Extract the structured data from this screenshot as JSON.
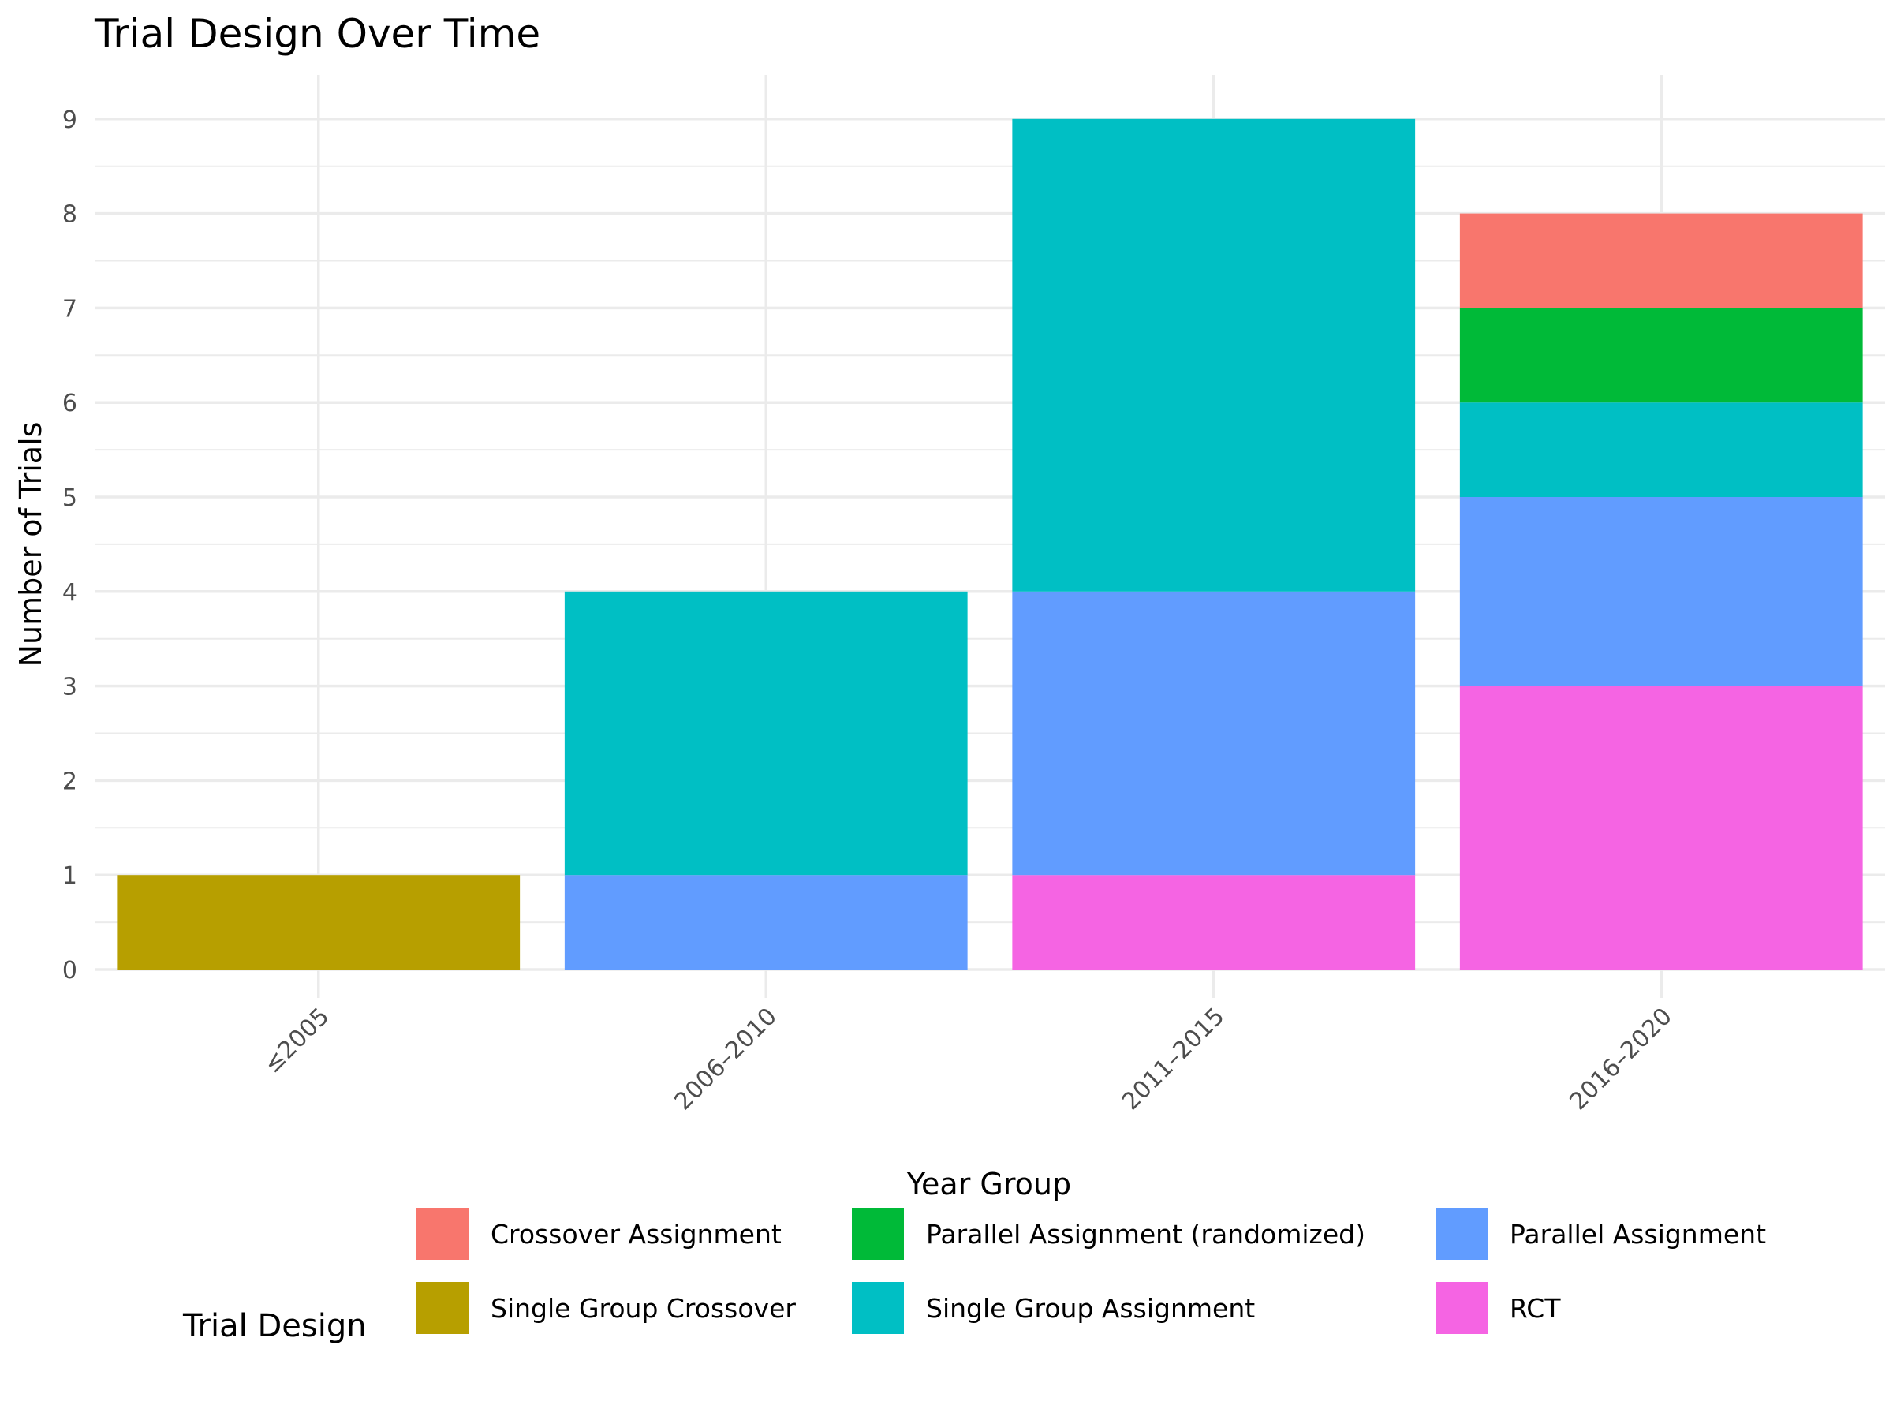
{
  "chart_data": {
    "type": "bar",
    "stacked": true,
    "title": "Trial Design Over Time",
    "xlabel": "Year Group",
    "ylabel": "Number of Trials",
    "ylim": [
      0,
      9
    ],
    "grid": true,
    "categories": [
      "≤2005",
      "2006–2010",
      "2011–2015",
      "2016–2020"
    ],
    "series": [
      {
        "name": "RCT",
        "color": "#F564E3",
        "values": [
          0,
          0,
          1,
          3
        ]
      },
      {
        "name": "Parallel Assignment",
        "color": "#619CFF",
        "values": [
          0,
          1,
          3,
          2
        ]
      },
      {
        "name": "Single Group Assignment",
        "color": "#00BFC4",
        "values": [
          0,
          3,
          5,
          1
        ]
      },
      {
        "name": "Parallel Assignment (randomized)",
        "color": "#00BA38",
        "values": [
          0,
          0,
          0,
          1
        ]
      },
      {
        "name": "Single Group Crossover",
        "color": "#B79F00",
        "values": [
          1,
          0,
          0,
          0
        ]
      },
      {
        "name": "Crossover Assignment",
        "color": "#F8766D",
        "values": [
          0,
          0,
          0,
          1
        ]
      }
    ],
    "legend": {
      "title": "Trial Design",
      "position": "bottom",
      "order": [
        "Crossover Assignment",
        "Parallel Assignment (randomized)",
        "Parallel Assignment",
        "Single Group Crossover",
        "Single Group Assignment",
        "RCT"
      ]
    }
  }
}
